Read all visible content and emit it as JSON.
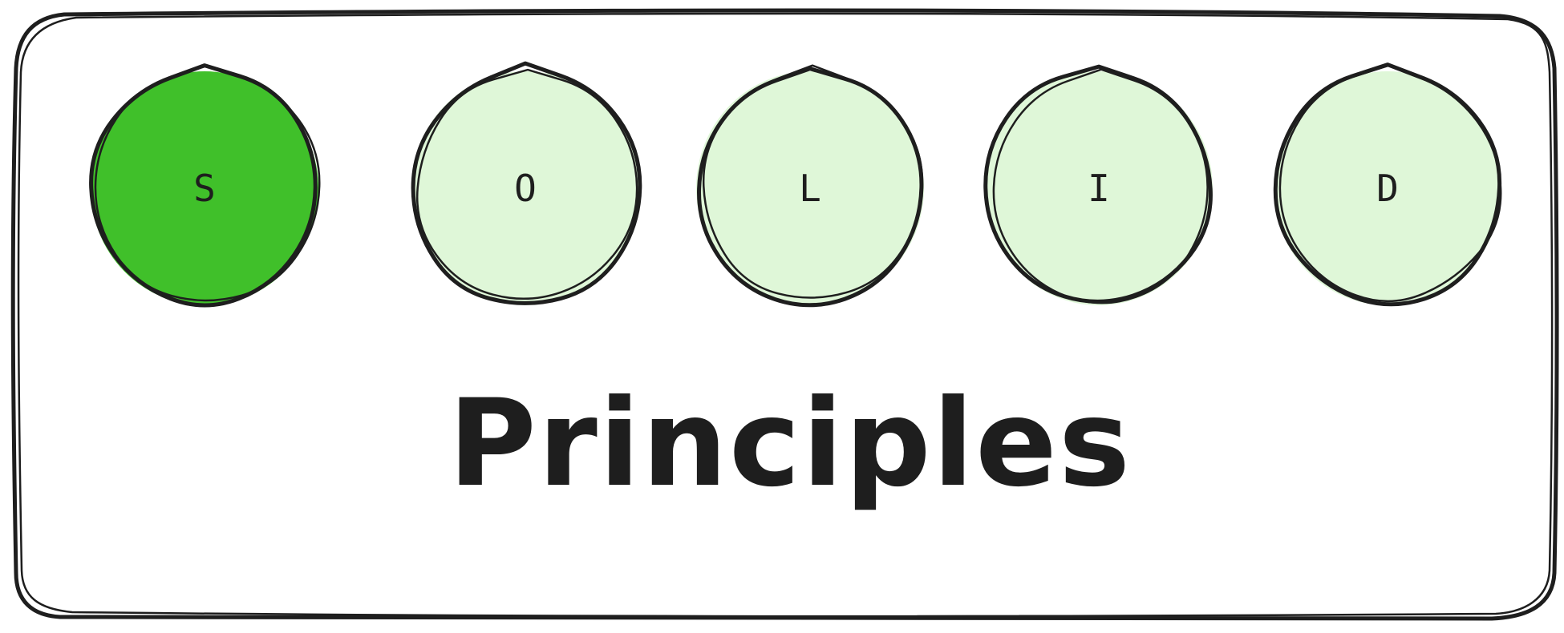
{
  "diagram": {
    "letters": [
      {
        "text": "S",
        "highlighted": true
      },
      {
        "text": "O",
        "highlighted": false
      },
      {
        "text": "L",
        "highlighted": false
      },
      {
        "text": "I",
        "highlighted": false
      },
      {
        "text": "D",
        "highlighted": false
      }
    ],
    "caption": "Principles",
    "colors": {
      "stroke": "#1e1e1e",
      "highlight_fill": "#40c02a",
      "normal_fill": "#dff7d8",
      "background": "#ffffff"
    }
  }
}
